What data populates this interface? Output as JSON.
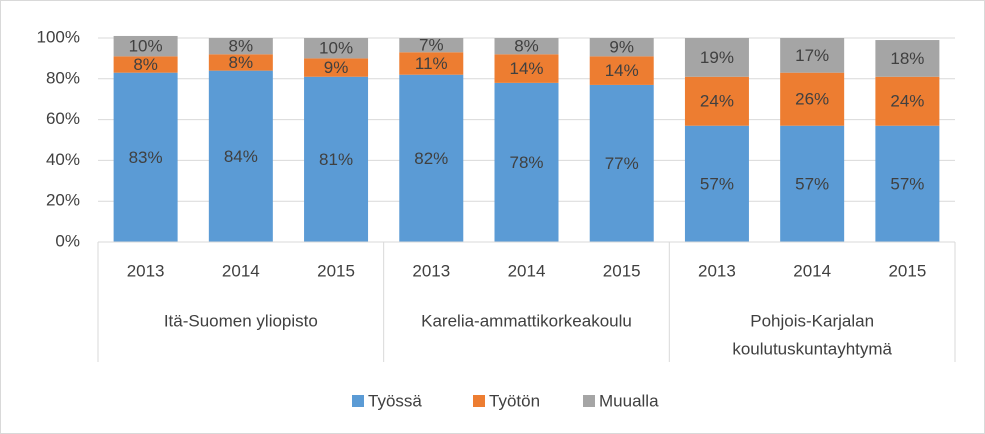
{
  "chart_data": {
    "type": "stacked_bar",
    "categories": [
      "2013",
      "2014",
      "2015",
      "2013",
      "2014",
      "2015",
      "2013",
      "2014",
      "2015"
    ],
    "groups": [
      [
        "Itä-Suomen yliopisto"
      ],
      [
        "Karelia-ammattikorkeakoulu"
      ],
      [
        "Pohjois-Karjalan",
        "koulutuskuntayhtymä"
      ]
    ],
    "series": [
      {
        "name": "Työssä",
        "color": "#5b9bd5",
        "values": [
          83,
          84,
          81,
          82,
          78,
          77,
          57,
          57,
          57
        ],
        "value_labels": [
          "83%",
          "84%",
          "81%",
          "82%",
          "78%",
          "77%",
          "57%",
          "57%",
          "57%"
        ]
      },
      {
        "name": "Työtön",
        "color": "#ed7d31",
        "values": [
          8,
          8,
          9,
          11,
          14,
          14,
          24,
          26,
          24
        ],
        "value_labels": [
          "8%",
          "8%",
          "9%",
          "11%",
          "14%",
          "14%",
          "24%",
          "26%",
          "24%"
        ]
      },
      {
        "name": "Muualla",
        "color": "#a5a5a5",
        "values": [
          10,
          8,
          10,
          7,
          8,
          9,
          19,
          17,
          18
        ],
        "value_labels": [
          "10%",
          "8%",
          "10%",
          "7%",
          "8%",
          "9%",
          "19%",
          "17%",
          "18%"
        ]
      }
    ],
    "ylim": [
      0,
      100
    ],
    "yticks": [
      {
        "value": 0,
        "label": "0%"
      },
      {
        "value": 20,
        "label": "20%"
      },
      {
        "value": 40,
        "label": "40%"
      },
      {
        "value": 60,
        "label": "60%"
      },
      {
        "value": 80,
        "label": "80%"
      },
      {
        "value": 100,
        "label": "100%"
      }
    ],
    "grid": true,
    "legend": "bottom"
  }
}
